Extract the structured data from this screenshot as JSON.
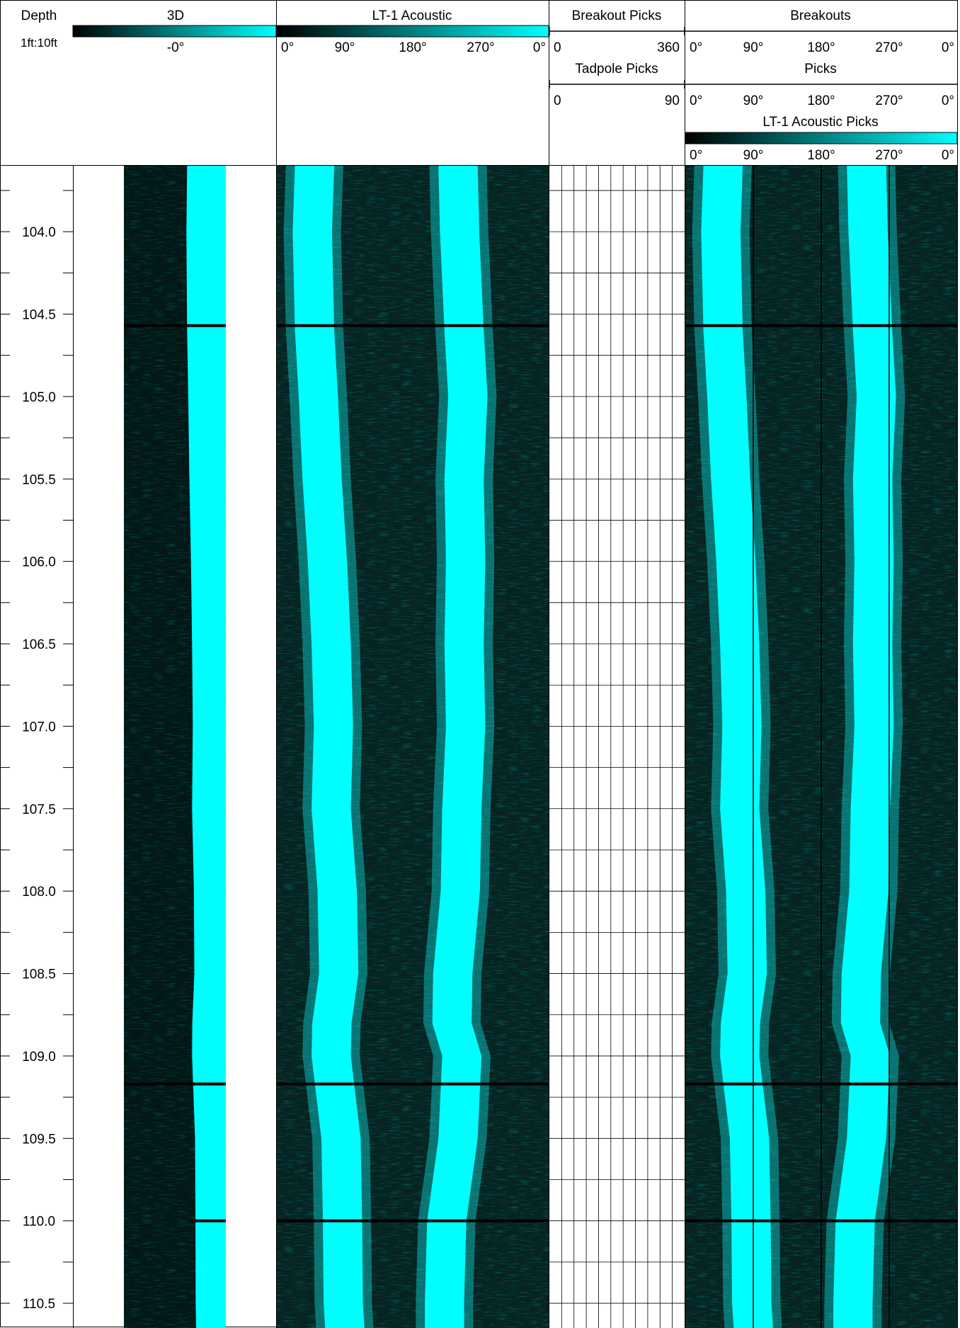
{
  "chart_data": {
    "type": "borehole-image-log",
    "depth_track": {
      "title": "Depth",
      "scale": "1ft:10ft",
      "range_ft": [
        103.6,
        110.65
      ],
      "labeled_depths": [
        "104.0",
        "104.5",
        "105.0",
        "105.5",
        "106.0",
        "106.5",
        "107.0",
        "107.5",
        "108.0",
        "108.5",
        "109.0",
        "109.5",
        "110.0",
        "110.5"
      ],
      "minor_tick_step_ft": 0.25
    },
    "tracks": [
      {
        "title": "3D",
        "type": "3d-borehole-view",
        "colorbar": [
          "#000000",
          "#00ffff"
        ],
        "scale_label": "-0°"
      },
      {
        "title": "LT-1 Acoustic",
        "type": "unwrapped-acoustic-image",
        "colorbar": [
          "#000000",
          "#00ffff"
        ],
        "scale_ticks": [
          "0°",
          "90°",
          "180°",
          "270°",
          "0°"
        ]
      },
      {
        "headers": [
          {
            "title": "Breakout Picks",
            "scale": [
              "0",
              "360"
            ]
          },
          {
            "title": "Tadpole Picks",
            "scale": [
              "0",
              "90"
            ]
          }
        ],
        "type": "picks-grid",
        "breakout_picks": [],
        "tadpole_picks": [],
        "vertical_grid_lines": 10
      },
      {
        "headers": [
          {
            "title": "Breakouts",
            "scale": [
              "0°",
              "90°",
              "180°",
              "270°",
              "0°"
            ]
          },
          {
            "title": "Picks",
            "scale": [
              "0°",
              "90°",
              "180°",
              "270°",
              "0°"
            ]
          },
          {
            "title": "LT-1 Acoustic Picks",
            "colorbar": [
              "#000000",
              "#00ffff"
            ],
            "scale": [
              "0°",
              "90°",
              "180°",
              "270°",
              "0°"
            ]
          }
        ],
        "type": "unwrapped-acoustic-image-with-picks",
        "grid_lines_at_deg": [
          90,
          180,
          270
        ]
      }
    ],
    "dark_bands": [
      {
        "depth_ft": 104.57
      },
      {
        "depth_ft": 109.17
      },
      {
        "depth_ft": 110.0
      }
    ],
    "bright_band_track_center_deg": [
      {
        "depth_ft": 103.6,
        "band1": 50,
        "band2": 240
      },
      {
        "depth_ft": 104.0,
        "band1": 47,
        "band2": 242
      },
      {
        "depth_ft": 104.6,
        "band1": 50,
        "band2": 248
      },
      {
        "depth_ft": 105.0,
        "band1": 55,
        "band2": 253
      },
      {
        "depth_ft": 105.5,
        "band1": 60,
        "band2": 248
      },
      {
        "depth_ft": 106.0,
        "band1": 67,
        "band2": 250
      },
      {
        "depth_ft": 106.5,
        "band1": 72,
        "band2": 248
      },
      {
        "depth_ft": 107.0,
        "band1": 75,
        "band2": 250
      },
      {
        "depth_ft": 107.5,
        "band1": 72,
        "band2": 245
      },
      {
        "depth_ft": 108.0,
        "band1": 80,
        "band2": 243
      },
      {
        "depth_ft": 108.5,
        "band1": 82,
        "band2": 233
      },
      {
        "depth_ft": 108.8,
        "band1": 73,
        "band2": 232
      },
      {
        "depth_ft": 109.0,
        "band1": 72,
        "band2": 245
      },
      {
        "depth_ft": 109.5,
        "band1": 85,
        "band2": 240
      },
      {
        "depth_ft": 110.0,
        "band1": 87,
        "band2": 225
      },
      {
        "depth_ft": 110.5,
        "band1": 88,
        "band2": 222
      },
      {
        "depth_ft": 110.65,
        "band1": 90,
        "band2": 222
      }
    ]
  }
}
